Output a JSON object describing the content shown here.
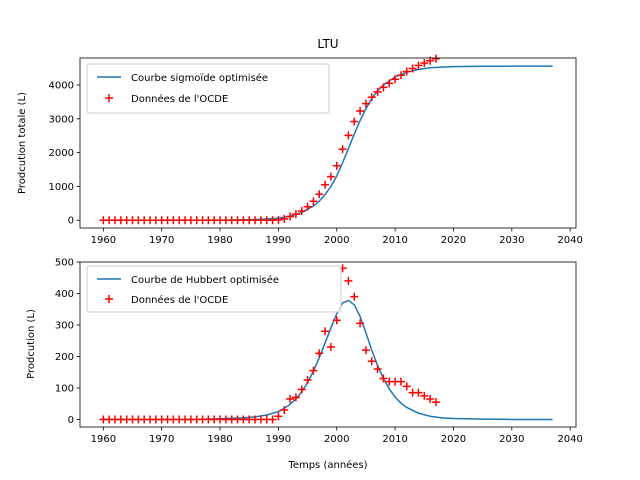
{
  "chart_data": [
    {
      "type": "line",
      "title": "LTU",
      "xlabel": "",
      "ylabel": "Prodcution totale (L)",
      "xlim": [
        1956,
        2041
      ],
      "ylim": [
        -230,
        4800
      ],
      "xticks": [
        1960,
        1970,
        1980,
        1990,
        2000,
        2010,
        2020,
        2030,
        2040
      ],
      "yticks": [
        0,
        1000,
        2000,
        3000,
        4000
      ],
      "legend_position": "upper left",
      "grid": false,
      "series": [
        {
          "name": "Courbe sigmoïde optimisée",
          "kind": "line",
          "color": "#1f77b4",
          "x": [
            1960,
            1965,
            1970,
            1975,
            1980,
            1984,
            1986,
            1988,
            1990,
            1992,
            1994,
            1996,
            1997,
            1998,
            1999,
            2000,
            2001,
            2002,
            2003,
            2004,
            2005,
            2006,
            2007,
            2008,
            2010,
            2012,
            2014,
            2016,
            2018,
            2020,
            2025,
            2030,
            2037
          ],
          "y": [
            0,
            0,
            0,
            0,
            2,
            10,
            20,
            35,
            60,
            120,
            230,
            420,
            560,
            760,
            1000,
            1310,
            1700,
            2120,
            2550,
            2950,
            3300,
            3600,
            3830,
            4000,
            4240,
            4380,
            4460,
            4510,
            4530,
            4545,
            4555,
            4558,
            4560
          ]
        },
        {
          "name": "Données de l'OCDE",
          "kind": "scatter",
          "marker": "+",
          "color": "#ff0000",
          "x": [
            1960,
            1961,
            1962,
            1963,
            1964,
            1965,
            1966,
            1967,
            1968,
            1969,
            1970,
            1971,
            1972,
            1973,
            1974,
            1975,
            1976,
            1977,
            1978,
            1979,
            1980,
            1981,
            1982,
            1983,
            1984,
            1985,
            1986,
            1987,
            1988,
            1989,
            1990,
            1991,
            1992,
            1993,
            1994,
            1995,
            1996,
            1997,
            1998,
            1999,
            2000,
            2001,
            2002,
            2003,
            2004,
            2005,
            2006,
            2007,
            2008,
            2009,
            2010,
            2011,
            2012,
            2013,
            2014,
            2015,
            2016,
            2017
          ],
          "y": [
            0,
            0,
            0,
            0,
            0,
            0,
            0,
            0,
            0,
            0,
            0,
            0,
            0,
            0,
            0,
            0,
            0,
            0,
            0,
            0,
            0,
            0,
            0,
            0,
            0,
            0,
            0,
            0,
            0,
            0,
            10,
            40,
            110,
            180,
            270,
            400,
            560,
            770,
            1050,
            1290,
            1610,
            2100,
            2510,
            2920,
            3230,
            3450,
            3640,
            3800,
            3930,
            4050,
            4170,
            4290,
            4400,
            4490,
            4580,
            4650,
            4720,
            4780
          ]
        }
      ]
    },
    {
      "type": "line",
      "title": "",
      "xlabel": "Temps (années)",
      "ylabel": "Prodcution (L)",
      "xlim": [
        1956,
        2041
      ],
      "ylim": [
        -24,
        500
      ],
      "xticks": [
        1960,
        1970,
        1980,
        1990,
        2000,
        2010,
        2020,
        2030,
        2040
      ],
      "yticks": [
        0,
        100,
        200,
        300,
        400,
        500
      ],
      "legend_position": "upper left",
      "grid": false,
      "series": [
        {
          "name": "Courbe de Hubbert optimisée",
          "kind": "line",
          "color": "#1f77b4",
          "x": [
            1960,
            1965,
            1970,
            1975,
            1980,
            1984,
            1986,
            1988,
            1990,
            1991,
            1992,
            1993,
            1994,
            1995,
            1996,
            1997,
            1998,
            1999,
            2000,
            2001,
            2002,
            2003,
            2004,
            2005,
            2006,
            2007,
            2008,
            2009,
            2010,
            2011,
            2012,
            2014,
            2016,
            2018,
            2020,
            2025,
            2030,
            2037
          ],
          "y": [
            0,
            0,
            0,
            0,
            2,
            5,
            8,
            14,
            25,
            35,
            48,
            65,
            88,
            117,
            153,
            196,
            243,
            291,
            336,
            370,
            378,
            364,
            327,
            275,
            220,
            171,
            130,
            97,
            71,
            52,
            38,
            20,
            10,
            5,
            3,
            1,
            0,
            0
          ]
        },
        {
          "name": "Données de l'OCDE",
          "kind": "scatter",
          "marker": "+",
          "color": "#ff0000",
          "x": [
            1960,
            1961,
            1962,
            1963,
            1964,
            1965,
            1966,
            1967,
            1968,
            1969,
            1970,
            1971,
            1972,
            1973,
            1974,
            1975,
            1976,
            1977,
            1978,
            1979,
            1980,
            1981,
            1982,
            1983,
            1984,
            1985,
            1986,
            1987,
            1988,
            1989,
            1990,
            1991,
            1992,
            1993,
            1994,
            1995,
            1996,
            1997,
            1998,
            1999,
            2000,
            2001,
            2002,
            2003,
            2004,
            2005,
            2006,
            2007,
            2008,
            2009,
            2010,
            2011,
            2012,
            2013,
            2014,
            2015,
            2016,
            2017
          ],
          "y": [
            0,
            0,
            0,
            0,
            0,
            0,
            0,
            0,
            0,
            0,
            0,
            0,
            0,
            0,
            0,
            0,
            0,
            0,
            0,
            0,
            0,
            0,
            0,
            0,
            0,
            0,
            0,
            0,
            0,
            0,
            10,
            30,
            65,
            70,
            95,
            125,
            155,
            210,
            280,
            230,
            315,
            480,
            440,
            390,
            305,
            220,
            185,
            160,
            130,
            120,
            120,
            120,
            105,
            85,
            85,
            75,
            65,
            55
          ]
        }
      ]
    }
  ]
}
